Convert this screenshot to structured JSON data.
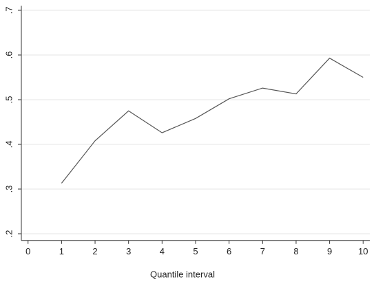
{
  "chart_data": {
    "type": "line",
    "x_label": "Quantile interval",
    "x": [
      1,
      2,
      3,
      4,
      5,
      6,
      7,
      8,
      9,
      10
    ],
    "series": [
      {
        "color": "#555555",
        "values": [
          0.313,
          0.408,
          0.475,
          0.426,
          0.458,
          0.502,
          0.526,
          0.513,
          0.593,
          0.55
        ]
      }
    ],
    "xlim": [
      -0.2,
      10.2
    ],
    "xticks": [
      0,
      1,
      2,
      3,
      4,
      5,
      6,
      7,
      8,
      9,
      10
    ],
    "ylim": [
      0.185,
      0.71
    ],
    "yticks": [
      {
        "value": 0.2,
        "label": ".2"
      },
      {
        "value": 0.3,
        "label": ".3"
      },
      {
        "value": 0.4,
        "label": ".4"
      },
      {
        "value": 0.5,
        "label": ".5"
      },
      {
        "value": 0.6,
        "label": ".6"
      },
      {
        "value": 0.7,
        "label": ".7"
      }
    ],
    "grid": true
  }
}
